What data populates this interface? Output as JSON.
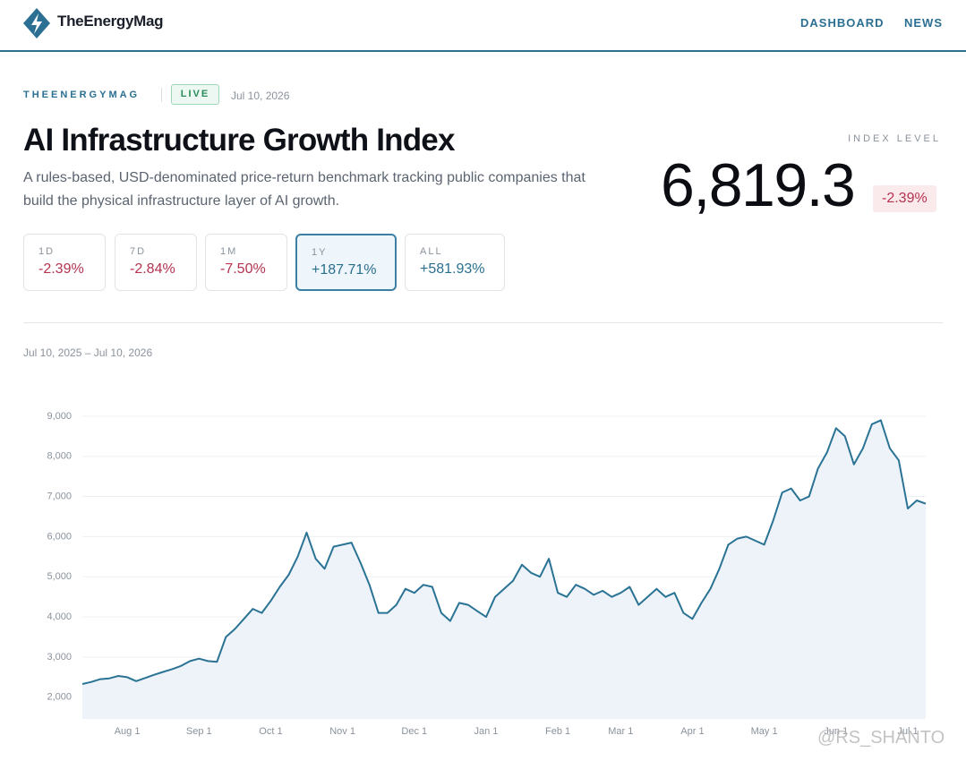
{
  "header": {
    "brand": "TheEnergyMag",
    "nav": [
      "DASHBOARD",
      "NEWS"
    ]
  },
  "hero": {
    "eyebrow": "THEENERGYMAG",
    "badge": "LIVE",
    "date": "Jul 10, 2026",
    "title": "AI Infrastructure Growth Index",
    "description": "A rules-based, USD-denominated price-return benchmark tracking public companies that build the physical infrastructure layer of AI growth.",
    "index_label": "INDEX LEVEL",
    "index_value": "6,819.3",
    "index_change": "-2.39%"
  },
  "periods": [
    {
      "label": "1D",
      "change": "-2.39%"
    },
    {
      "label": "7D",
      "change": "-2.84%"
    },
    {
      "label": "1M",
      "change": "-7.50%"
    },
    {
      "label": "1Y",
      "change": "+187.71%",
      "active": true
    },
    {
      "label": "ALL",
      "change": "+581.93%"
    }
  ],
  "chart_data": {
    "type": "line",
    "subtitle": "Jul 10, 2025 – Jul 10, 2026",
    "x": [
      null,
      null,
      null,
      null,
      null,
      "Aug 1",
      null,
      null,
      null,
      null,
      null,
      null,
      null,
      "Sep 1",
      null,
      null,
      null,
      null,
      null,
      null,
      null,
      "Oct 1",
      null,
      null,
      null,
      null,
      null,
      null,
      null,
      "Nov 1",
      null,
      null,
      null,
      null,
      null,
      null,
      null,
      "Dec 1",
      null,
      null,
      null,
      null,
      null,
      null,
      null,
      "Jan 1",
      null,
      null,
      null,
      null,
      null,
      null,
      null,
      "Feb 1",
      null,
      null,
      null,
      null,
      null,
      null,
      "Mar 1",
      null,
      null,
      null,
      null,
      null,
      null,
      null,
      "Apr 1",
      null,
      null,
      null,
      null,
      null,
      null,
      null,
      "May 1",
      null,
      null,
      null,
      null,
      null,
      null,
      null,
      "Jun 1",
      null,
      null,
      null,
      null,
      null,
      null,
      null,
      "Jul 1",
      null,
      null
    ],
    "series": [
      {
        "color": "#2a7394",
        "values": [
          2330,
          2380,
          2450,
          2470,
          2530,
          2500,
          2400,
          2480,
          2560,
          2630,
          2700,
          2780,
          2900,
          2960,
          2900,
          2880,
          3500,
          3700,
          3950,
          4200,
          4100,
          4400,
          4750,
          5050,
          5500,
          6100,
          5450,
          5200,
          5750,
          5800,
          5850,
          5350,
          4800,
          4100,
          4100,
          4300,
          4700,
          4600,
          4800,
          4750,
          4100,
          3900,
          4350,
          4300,
          4150,
          4000,
          4500,
          4700,
          4900,
          5300,
          5100,
          5000,
          5450,
          4600,
          4500,
          4800,
          4700,
          4550,
          4650,
          4500,
          4600,
          4750,
          4300,
          4500,
          4700,
          4500,
          4600,
          4100,
          3950,
          4350,
          4700,
          5200,
          5800,
          5950,
          6000,
          5900,
          5800,
          6400,
          7100,
          7200,
          6900,
          7000,
          7700,
          8100,
          8700,
          8500,
          7800,
          8200,
          8800,
          8900,
          8200,
          7900,
          6700,
          6900,
          6820
        ]
      }
    ],
    "area_color": "#eef3fa",
    "ylim": [
      1460,
      9220
    ],
    "yticks": [
      {
        "value": 2000,
        "label": "2,000"
      },
      {
        "value": 3000,
        "label": "3,000"
      },
      {
        "value": 4000,
        "label": "4,000"
      },
      {
        "value": 5000,
        "label": "5,000"
      },
      {
        "value": 6000,
        "label": "6,000"
      },
      {
        "value": 7000,
        "label": "7,000"
      },
      {
        "value": 8000,
        "label": "8,000"
      },
      {
        "value": 9000,
        "label": "9,000"
      }
    ],
    "grid": true
  },
  "watermark": "@RS_SHANTO"
}
